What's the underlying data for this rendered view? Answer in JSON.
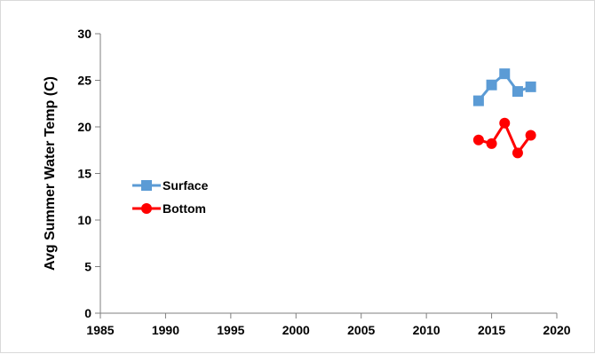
{
  "chart_data": {
    "type": "line",
    "title": "",
    "xlabel": "",
    "ylabel": "Avg Summer Water Temp (C)",
    "xlim": [
      1985,
      2020
    ],
    "ylim": [
      0,
      30
    ],
    "xticks": [
      1985,
      1990,
      1995,
      2000,
      2005,
      2010,
      2015,
      2020
    ],
    "yticks": [
      0,
      5,
      10,
      15,
      20,
      25,
      30
    ],
    "grid": false,
    "legend_position": "left-middle",
    "series": [
      {
        "name": "Surface",
        "color": "#5b9bd5",
        "marker": "square",
        "x": [
          2014,
          2015,
          2016,
          2017,
          2018
        ],
        "y": [
          22.8,
          24.5,
          25.7,
          23.8,
          24.3
        ]
      },
      {
        "name": "Bottom",
        "color": "#ff0000",
        "marker": "circle",
        "x": [
          2014,
          2015,
          2016,
          2017,
          2018
        ],
        "y": [
          18.6,
          18.2,
          20.4,
          17.2,
          19.1
        ]
      }
    ]
  }
}
